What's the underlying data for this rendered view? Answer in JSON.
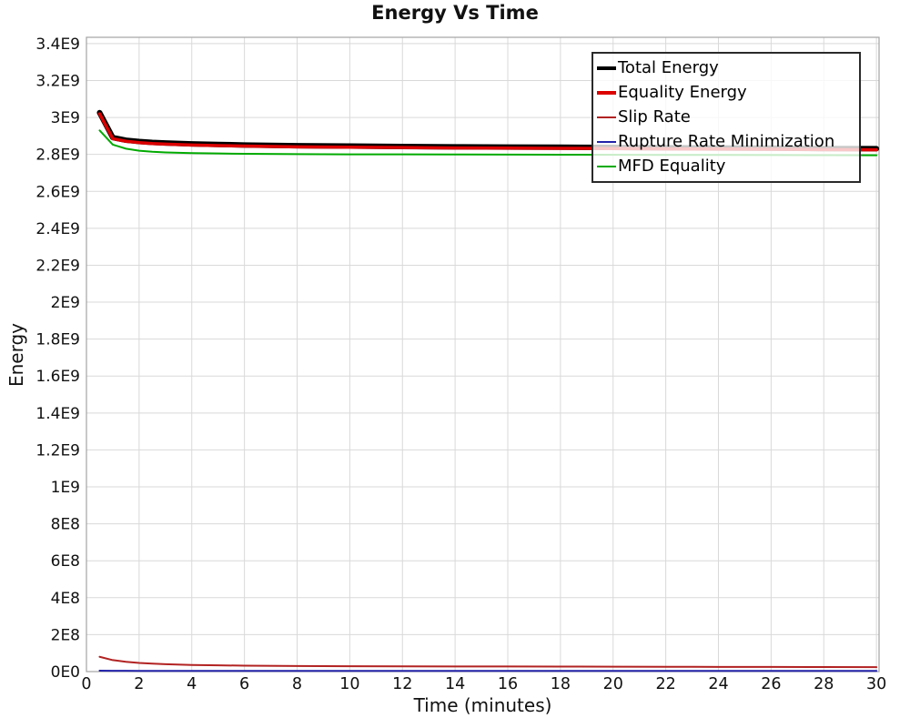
{
  "chart_data": {
    "type": "line",
    "title": "Energy Vs Time",
    "xlabel": "Time (minutes)",
    "ylabel": "Energy",
    "xlim": [
      0,
      30.1
    ],
    "ylim": [
      0,
      3434000000.0
    ],
    "grid": true,
    "grid_color": "#d9d9d9",
    "border_color": "#a3a3a3",
    "tick_label_color": "#111111",
    "legend_position": "top-right",
    "legend_background": "rgba(255,255,255,0.78)",
    "x_ticks": [
      0,
      2,
      4,
      6,
      8,
      10,
      12,
      14,
      16,
      18,
      20,
      22,
      24,
      26,
      28,
      30
    ],
    "y_ticks": [
      {
        "value": 0,
        "label": "0E0"
      },
      {
        "value": 200000000.0,
        "label": "2E8"
      },
      {
        "value": 400000000.0,
        "label": "4E8"
      },
      {
        "value": 600000000.0,
        "label": "6E8"
      },
      {
        "value": 800000000.0,
        "label": "8E8"
      },
      {
        "value": 1000000000.0,
        "label": "1E9"
      },
      {
        "value": 1200000000.0,
        "label": "1.2E9"
      },
      {
        "value": 1400000000.0,
        "label": "1.4E9"
      },
      {
        "value": 1600000000.0,
        "label": "1.6E9"
      },
      {
        "value": 1800000000.0,
        "label": "1.8E9"
      },
      {
        "value": 2000000000.0,
        "label": "2E9"
      },
      {
        "value": 2200000000.0,
        "label": "2.2E9"
      },
      {
        "value": 2400000000.0,
        "label": "2.4E9"
      },
      {
        "value": 2600000000.0,
        "label": "2.6E9"
      },
      {
        "value": 2800000000.0,
        "label": "2.8E9"
      },
      {
        "value": 3000000000.0,
        "label": "3E9"
      },
      {
        "value": 3200000000.0,
        "label": "3.2E9"
      },
      {
        "value": 3400000000.0,
        "label": "3.4E9"
      }
    ],
    "x": [
      0.5,
      1,
      1.5,
      2,
      2.5,
      3,
      4,
      5,
      6,
      8,
      10,
      12,
      14,
      16,
      18,
      20,
      22,
      24,
      26,
      28,
      30
    ],
    "series": [
      {
        "name": "Total Energy",
        "color": "#000000",
        "width": 6,
        "y": [
          3026000000.0,
          2891000000.0,
          2877000000.0,
          2870000000.0,
          2865000000.0,
          2862000000.0,
          2857000000.0,
          2854000000.0,
          2851000000.0,
          2847000000.0,
          2845000000.0,
          2843000000.0,
          2841000000.0,
          2840000000.0,
          2839000000.0,
          2838000000.0,
          2836000000.0,
          2835000000.0,
          2834000000.0,
          2832000000.0,
          2831000000.0
        ]
      },
      {
        "name": "Equality Energy",
        "color": "#dd0000",
        "width": 3.5,
        "y": [
          3020000000.0,
          2885000000.0,
          2871000000.0,
          2864000000.0,
          2859000000.0,
          2856000000.0,
          2851000000.0,
          2848000000.0,
          2845000000.0,
          2841000000.0,
          2839000000.0,
          2837000000.0,
          2835000000.0,
          2834000000.0,
          2833000000.0,
          2832000000.0,
          2830000000.0,
          2829000000.0,
          2828000000.0,
          2826000000.0,
          2825000000.0
        ]
      },
      {
        "name": "Slip Rate",
        "color": "#b22222",
        "width": 2,
        "y": [
          80000000.0,
          62000000.0,
          53000000.0,
          47000000.0,
          43000000.0,
          40000000.0,
          36000000.0,
          34000000.0,
          32000000.0,
          30000000.0,
          29000000.0,
          28500000.0,
          28000000.0,
          27500000.0,
          27000000.0,
          26500000.0,
          26000000.0,
          25500000.0,
          25000000.0,
          24500000.0,
          24000000.0
        ]
      },
      {
        "name": "Rupture Rate Minimization",
        "color": "#2222aa",
        "width": 2,
        "y": [
          5000000.0,
          4500000.0,
          4200000.0,
          4000000.0,
          4000000.0,
          4000000.0,
          4000000.0,
          4000000.0,
          4000000.0,
          4000000.0,
          4000000.0,
          4000000.0,
          4000000.0,
          4000000.0,
          4000000.0,
          4000000.0,
          4000000.0,
          4000000.0,
          4000000.0,
          4000000.0,
          4000000.0
        ]
      },
      {
        "name": "MFD Equality",
        "color": "#00aa00",
        "width": 2,
        "y": [
          2930000000.0,
          2853000000.0,
          2831000000.0,
          2820000000.0,
          2814500000.0,
          2811000000.0,
          2807000000.0,
          2805000000.0,
          2803500000.0,
          2801500000.0,
          2800500000.0,
          2800000000.0,
          2799500000.0,
          2799000000.0,
          2798500000.0,
          2798000000.0,
          2797500000.0,
          2797000000.0,
          2796500000.0,
          2796000000.0,
          2795500000.0
        ]
      }
    ]
  }
}
